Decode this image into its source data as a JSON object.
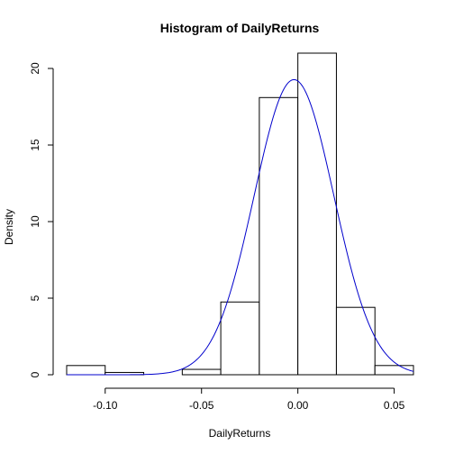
{
  "chart_data": {
    "type": "bar",
    "title": "Histogram of DailyReturns",
    "xlabel": "DailyReturns",
    "ylabel": "Density",
    "xlim": [
      -0.12,
      0.06
    ],
    "ylim": [
      0,
      21
    ],
    "x_ticks": [
      -0.1,
      -0.05,
      0.0,
      0.05
    ],
    "x_tick_labels": [
      "-0.10",
      "-0.05",
      "0.00",
      "0.05"
    ],
    "y_ticks": [
      0,
      5,
      10,
      15,
      20
    ],
    "y_tick_labels": [
      "0",
      "5",
      "10",
      "15",
      "20"
    ],
    "bins": [
      {
        "from": -0.12,
        "to": -0.1,
        "density": 0.6
      },
      {
        "from": -0.1,
        "to": -0.08,
        "density": 0.15
      },
      {
        "from": -0.08,
        "to": -0.06,
        "density": 0.0
      },
      {
        "from": -0.06,
        "to": -0.04,
        "density": 0.35
      },
      {
        "from": -0.04,
        "to": -0.02,
        "density": 4.75
      },
      {
        "from": -0.02,
        "to": 0.0,
        "density": 18.1
      },
      {
        "from": 0.0,
        "to": 0.02,
        "density": 21.0
      },
      {
        "from": 0.02,
        "to": 0.04,
        "density": 4.4
      },
      {
        "from": 0.04,
        "to": 0.06,
        "density": 0.6
      }
    ],
    "density_curve": {
      "color": "#0000cc",
      "mean": -0.002,
      "sd": 0.0207
    },
    "grid": false
  }
}
